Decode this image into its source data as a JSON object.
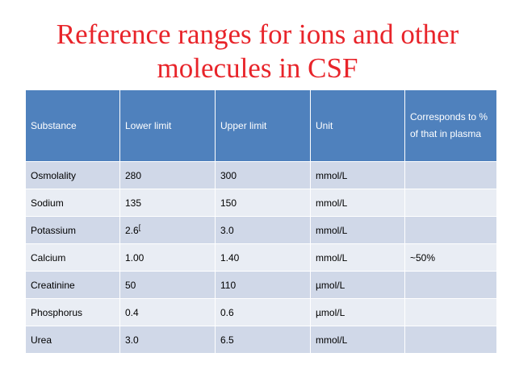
{
  "title": {
    "line1": "Reference ranges for ions and other",
    "line2": "molecules in CSF"
  },
  "colors": {
    "title": "#e8242a",
    "header_bg": "#4f81bd",
    "row_odd": "#d0d8e8",
    "row_even": "#e9edf4"
  },
  "table": {
    "headers": [
      "Substance",
      "Lower limit",
      "Upper limit",
      "Unit",
      "Corresponds to % of that in plasma"
    ],
    "rows": [
      {
        "substance": "Osmolality",
        "lower": "280",
        "upper": "300",
        "unit": "mmol/L",
        "percent": ""
      },
      {
        "substance": "Sodium",
        "lower": "135",
        "upper": "150",
        "unit": "mmol/L",
        "percent": ""
      },
      {
        "substance": "Potassium",
        "lower": "2.6",
        "lower_note": "[",
        "upper": "3.0",
        "unit": "mmol/L",
        "percent": ""
      },
      {
        "substance": "Calcium",
        "lower": "1.00",
        "upper": "1.40",
        "unit": "mmol/L",
        "percent": "~50%"
      },
      {
        "substance": "Creatinine",
        "lower": "50",
        "upper": "110",
        "unit": "µmol/L",
        "percent": ""
      },
      {
        "substance": "Phosphorus",
        "lower": "0.4",
        "upper": "0.6",
        "unit": "µmol/L",
        "percent": ""
      },
      {
        "substance": "Urea",
        "lower": "3.0",
        "upper": "6.5",
        "unit": "mmol/L",
        "percent": ""
      }
    ]
  }
}
